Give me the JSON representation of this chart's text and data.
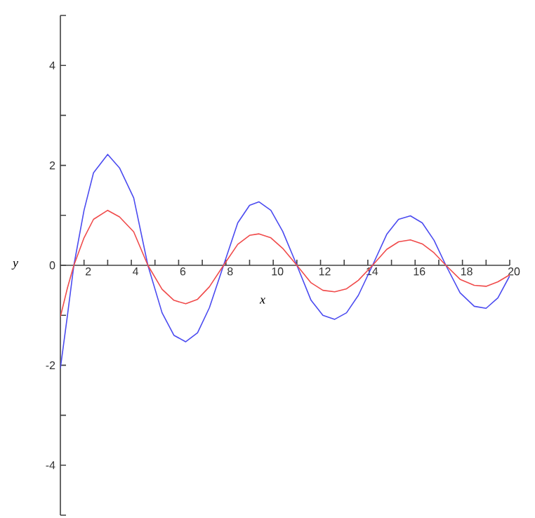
{
  "chart_data": {
    "type": "line",
    "xlabel": "x",
    "ylabel": "y",
    "xlim": [
      1,
      20
    ],
    "ylim": [
      -5,
      5
    ],
    "xticks": [
      2,
      {
        "value": 3,
        "label": null
      },
      4,
      {
        "value": 5,
        "label": null
      },
      6,
      {
        "value": 7,
        "label": null
      },
      8,
      {
        "value": 9,
        "label": null
      },
      10,
      {
        "value": 11,
        "label": null
      },
      12,
      {
        "value": 13,
        "label": null
      },
      14,
      {
        "value": 15,
        "label": null
      },
      16,
      {
        "value": 17,
        "label": null
      },
      18,
      {
        "value": 19,
        "label": null
      },
      20
    ],
    "yticks": [
      {
        "value": -5,
        "label": null
      },
      -4,
      {
        "value": -3,
        "label": null
      },
      -2,
      {
        "value": -1,
        "label": null
      },
      0,
      {
        "value": 1,
        "label": null
      },
      2,
      {
        "value": 3,
        "label": null
      },
      4,
      {
        "value": 5,
        "label": null
      }
    ],
    "x": [
      1,
      1.3,
      1.57,
      2.0,
      2.4,
      3.0,
      3.5,
      4.1,
      4.7,
      5.3,
      5.8,
      6.3,
      6.8,
      7.3,
      7.9,
      8.5,
      9.0,
      9.4,
      9.9,
      10.4,
      11.0,
      11.6,
      12.1,
      12.6,
      13.1,
      13.6,
      14.2,
      14.8,
      15.3,
      15.8,
      16.3,
      16.8,
      17.3,
      17.9,
      18.5,
      19.0,
      19.5,
      20
    ],
    "line_style": "solid",
    "series": [
      {
        "color": "#4b4bf0",
        "values": [
          -2.06,
          -1.0,
          0,
          1.1,
          1.85,
          2.22,
          1.95,
          1.35,
          0,
          -0.95,
          -1.4,
          -1.53,
          -1.35,
          -0.85,
          0,
          0.85,
          1.2,
          1.27,
          1.1,
          0.68,
          0,
          -0.7,
          -1.0,
          -1.08,
          -0.95,
          -0.6,
          0,
          0.62,
          0.92,
          0.99,
          0.85,
          0.5,
          0,
          -0.55,
          -0.82,
          -0.86,
          -0.65,
          -0.21
        ]
      },
      {
        "color": "#f04b4b",
        "values": [
          -1.03,
          -0.45,
          0,
          0.55,
          0.92,
          1.1,
          0.97,
          0.67,
          0,
          -0.48,
          -0.7,
          -0.77,
          -0.68,
          -0.43,
          0,
          0.42,
          0.6,
          0.63,
          0.55,
          0.34,
          0,
          -0.35,
          -0.5,
          -0.53,
          -0.47,
          -0.3,
          0,
          0.32,
          0.47,
          0.51,
          0.43,
          0.25,
          0,
          -0.28,
          -0.4,
          -0.42,
          -0.33,
          -0.19
        ]
      }
    ]
  }
}
